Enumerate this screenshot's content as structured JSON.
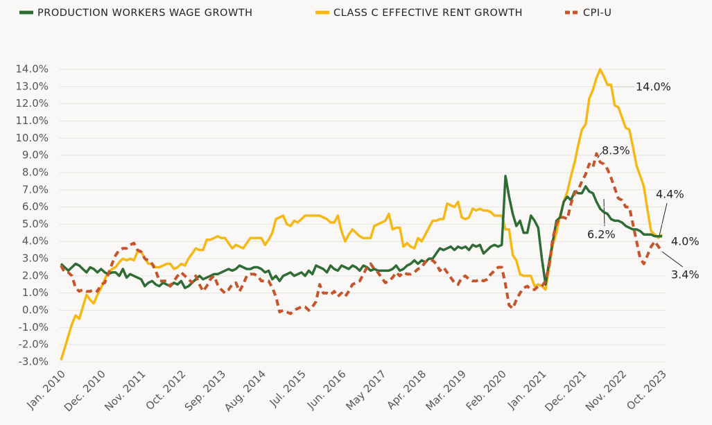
{
  "chart_data": {
    "type": "line",
    "categories": [
      "Jan. 2010",
      null,
      null,
      null,
      null,
      null,
      null,
      null,
      null,
      null,
      null,
      "Dec. 2010",
      null,
      null,
      null,
      null,
      null,
      null,
      null,
      null,
      null,
      null,
      "Nov. 2011",
      null,
      null,
      null,
      null,
      null,
      null,
      null,
      null,
      null,
      null,
      "Oct. 2012",
      null,
      null,
      null,
      null,
      null,
      null,
      null,
      null,
      null,
      null,
      "Sep. 2013",
      null,
      null,
      null,
      null,
      null,
      null,
      null,
      null,
      null,
      null,
      "Aug. 2014",
      null,
      null,
      null,
      null,
      null,
      null,
      null,
      null,
      null,
      null,
      "Jul. 2015",
      null,
      null,
      null,
      null,
      null,
      null,
      null,
      null,
      null,
      null,
      "Jun. 2016",
      null,
      null,
      null,
      null,
      null,
      null,
      null,
      null,
      null,
      null,
      "May 2017",
      null,
      null,
      null,
      null,
      null,
      null,
      null,
      null,
      null,
      null,
      "Apr. 2018",
      null,
      null,
      null,
      null,
      null,
      null,
      null,
      null,
      null,
      null,
      "Mar. 2019",
      null,
      null,
      null,
      null,
      null,
      null,
      null,
      null,
      null,
      null,
      "Feb. 2020",
      null,
      null,
      null,
      null,
      null,
      null,
      null,
      null,
      null,
      null,
      "Jan. 2021",
      null,
      null,
      null,
      null,
      null,
      null,
      null,
      null,
      null,
      null,
      "Dec. 2021",
      null,
      null,
      null,
      null,
      null,
      null,
      null,
      null,
      null,
      null,
      "Nov. 2022",
      null,
      null,
      null,
      null,
      null,
      null,
      null,
      null,
      null,
      null,
      "Oct. 2023"
    ],
    "series": [
      {
        "name": "PRODUCTION WORKERS WAGE GROWTH",
        "color": "#2e6b35",
        "dashed": false,
        "values": [
          2.7,
          2.5,
          2.3,
          2.5,
          2.7,
          2.6,
          2.4,
          2.2,
          2.5,
          2.4,
          2.2,
          2.4,
          2.2,
          2.1,
          2.2,
          2.2,
          2.0,
          2.4,
          1.9,
          2.1,
          2.0,
          1.9,
          1.8,
          1.4,
          1.6,
          1.7,
          1.5,
          1.4,
          1.6,
          1.5,
          1.4,
          1.6,
          1.5,
          1.7,
          1.3,
          1.4,
          1.6,
          1.8,
          2.0,
          1.8,
          1.9,
          2.0,
          2.1,
          2.1,
          2.2,
          2.3,
          2.4,
          2.3,
          2.4,
          2.6,
          2.5,
          2.4,
          2.4,
          2.5,
          2.5,
          2.4,
          2.2,
          2.3,
          1.8,
          2.0,
          1.7,
          2.0,
          2.1,
          2.2,
          2.0,
          2.1,
          2.2,
          2.0,
          2.3,
          2.1,
          2.6,
          2.5,
          2.4,
          2.2,
          2.6,
          2.4,
          2.3,
          2.6,
          2.5,
          2.4,
          2.6,
          2.5,
          2.3,
          2.6,
          2.5,
          2.3,
          2.4,
          2.3,
          2.3,
          2.3,
          2.3,
          2.4,
          2.6,
          2.3,
          2.4,
          2.6,
          2.7,
          2.9,
          2.7,
          2.9,
          2.8,
          3.0,
          3.0,
          3.3,
          3.6,
          3.5,
          3.6,
          3.7,
          3.5,
          3.7,
          3.6,
          3.7,
          3.5,
          3.8,
          3.7,
          3.8,
          3.3,
          3.5,
          3.7,
          3.8,
          3.7,
          3.8,
          7.8,
          6.6,
          5.6,
          4.9,
          5.2,
          4.5,
          4.5,
          5.5,
          5.2,
          4.8,
          3.0,
          1.5,
          2.8,
          4.0,
          5.2,
          5.4,
          6.3,
          6.6,
          6.4,
          6.9,
          6.8,
          6.8,
          7.2,
          6.9,
          6.8,
          6.3,
          5.9,
          5.7,
          5.6,
          5.3,
          5.2,
          5.2,
          5.1,
          4.9,
          4.8,
          4.7,
          4.7,
          4.6,
          4.4,
          4.4,
          4.4,
          4.3,
          4.3,
          4.3
        ]
      },
      {
        "name": "CLASS C EFFECTIVE RENT GROWTH",
        "color": "#f6b817",
        "dashed": false,
        "values": [
          -2.9,
          -2.2,
          -1.5,
          -0.8,
          -0.3,
          -0.5,
          0.2,
          0.9,
          0.6,
          0.4,
          0.9,
          1.3,
          1.8,
          2.2,
          2.4,
          2.5,
          2.8,
          3.0,
          2.9,
          3.0,
          2.9,
          3.4,
          3.4,
          3.0,
          2.7,
          2.7,
          2.5,
          2.5,
          2.6,
          2.7,
          2.7,
          2.4,
          2.5,
          2.7,
          2.6,
          3.0,
          3.3,
          3.6,
          3.5,
          3.5,
          4.1,
          4.1,
          4.2,
          4.3,
          4.2,
          4.2,
          3.9,
          3.6,
          3.8,
          3.7,
          3.6,
          3.9,
          4.2,
          4.2,
          4.2,
          4.2,
          3.8,
          4.1,
          4.5,
          5.3,
          5.4,
          5.5,
          5.0,
          4.9,
          5.2,
          5.1,
          5.3,
          5.5,
          5.5,
          5.5,
          5.5,
          5.5,
          5.4,
          5.3,
          5.1,
          5.1,
          5.5,
          4.6,
          4.0,
          4.4,
          4.7,
          4.5,
          4.3,
          4.2,
          4.2,
          4.2,
          4.9,
          5.0,
          5.1,
          5.2,
          5.6,
          4.7,
          4.8,
          4.8,
          3.7,
          3.9,
          3.7,
          3.6,
          4.2,
          4.0,
          4.4,
          4.8,
          5.2,
          5.2,
          5.3,
          5.3,
          6.2,
          6.1,
          6.0,
          6.3,
          5.4,
          5.3,
          5.4,
          5.9,
          5.8,
          5.9,
          5.8,
          5.8,
          5.7,
          5.5,
          5.5,
          5.5,
          4.7,
          4.7,
          3.2,
          2.9,
          2.1,
          2.0,
          2.0,
          2.0,
          1.4,
          1.5,
          1.4,
          1.2,
          2.5,
          3.8,
          4.5,
          5.5,
          6.3,
          6.9,
          7.8,
          8.6,
          9.6,
          10.5,
          10.8,
          12.3,
          12.8,
          13.5,
          14.0,
          13.6,
          13.1,
          13.1,
          11.9,
          11.8,
          11.2,
          10.6,
          10.5,
          9.5,
          8.4,
          7.8,
          7.2,
          5.8,
          4.6,
          4.4,
          4.2,
          4.4
        ]
      },
      {
        "name": "CPI-U",
        "color": "#c4552b",
        "dashed": true,
        "values": [
          2.6,
          2.2,
          2.2,
          2.0,
          1.3,
          1.1,
          1.2,
          1.1,
          1.1,
          1.2,
          1.1,
          1.5,
          1.6,
          2.1,
          2.7,
          3.2,
          3.5,
          3.6,
          3.6,
          3.8,
          3.9,
          3.5,
          3.4,
          3.0,
          2.9,
          2.7,
          2.3,
          1.7,
          1.7,
          1.7,
          1.4,
          1.7,
          2.0,
          2.2,
          2.0,
          1.8,
          1.6,
          2.0,
          1.5,
          1.1,
          1.4,
          1.8,
          2.0,
          1.5,
          1.2,
          1.0,
          1.2,
          1.5,
          1.6,
          1.1,
          1.5,
          2.0,
          2.1,
          2.1,
          2.0,
          1.7,
          1.7,
          1.7,
          1.3,
          0.8,
          -0.1,
          0.0,
          -0.1,
          -0.2,
          0.0,
          0.1,
          0.2,
          0.2,
          0.0,
          0.2,
          0.5,
          1.5,
          1.0,
          1.0,
          0.9,
          1.1,
          0.8,
          1.0,
          0.8,
          1.1,
          1.5,
          1.6,
          1.7,
          2.1,
          2.5,
          2.7,
          2.4,
          2.2,
          1.9,
          1.6,
          1.7,
          1.9,
          2.2,
          2.0,
          2.2,
          2.1,
          2.1,
          2.2,
          2.4,
          2.5,
          2.8,
          2.9,
          2.9,
          2.7,
          2.3,
          2.5,
          2.2,
          1.9,
          1.6,
          1.5,
          1.9,
          2.0,
          1.8,
          1.7,
          1.7,
          1.8,
          1.7,
          1.8,
          2.1,
          2.3,
          2.5,
          2.5,
          1.5,
          0.3,
          0.1,
          0.6,
          1.0,
          1.3,
          1.4,
          1.2,
          1.2,
          1.4,
          1.4,
          1.7,
          2.6,
          4.2,
          5.0,
          5.4,
          5.4,
          5.3,
          6.2,
          6.8,
          7.0,
          7.5,
          7.9,
          8.5,
          8.3,
          9.1,
          8.6,
          8.5,
          8.2,
          7.7,
          7.1,
          6.5,
          6.4,
          6.0,
          6.0,
          5.0,
          4.0,
          3.0,
          2.7,
          3.2,
          3.7,
          4.0,
          3.7,
          3.4
        ]
      }
    ],
    "ylim": [
      -3,
      14
    ],
    "yticks": [
      {
        "value": -3,
        "label": "-3.0%"
      },
      {
        "value": -2,
        "label": "-2.0%"
      },
      {
        "value": -1,
        "label": "-1.0%"
      },
      {
        "value": 0,
        "label": "0.0%"
      },
      {
        "value": 1,
        "label": "1.0%"
      },
      {
        "value": 2,
        "label": "2.0%"
      },
      {
        "value": 3,
        "label": "3.0%"
      },
      {
        "value": 4,
        "label": "4.0%"
      },
      {
        "value": 5,
        "label": "5.0%"
      },
      {
        "value": 6,
        "label": "6.0%"
      },
      {
        "value": 7,
        "label": "7.0%"
      },
      {
        "value": 8,
        "label": "8.0%"
      },
      {
        "value": 9,
        "label": "9.0%"
      },
      {
        "value": 10,
        "label": "10.0%"
      },
      {
        "value": 11,
        "label": "11.0%"
      },
      {
        "value": 12,
        "label": "12.0%"
      },
      {
        "value": 13,
        "label": "13.0%"
      },
      {
        "value": 14,
        "label": "14.0%"
      }
    ],
    "grid": true,
    "legend": "top",
    "annotations": [
      "14.0%",
      "8.3%",
      "6.2%",
      "4.4%",
      "4.0%",
      "3.4%"
    ]
  }
}
